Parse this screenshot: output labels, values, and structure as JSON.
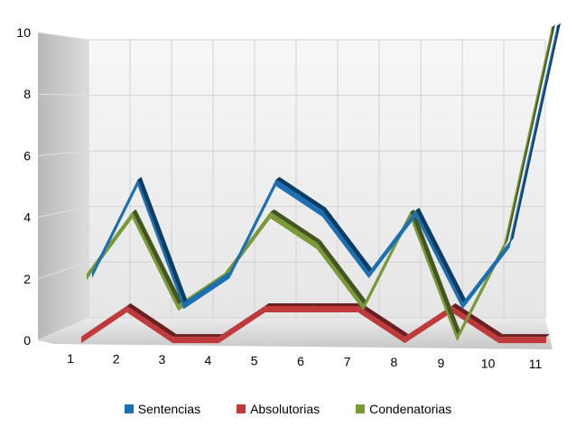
{
  "chart_data": {
    "type": "line",
    "style": "3d-ribbon",
    "x": [
      1,
      2,
      3,
      4,
      5,
      6,
      7,
      8,
      9,
      10,
      11
    ],
    "xticks": [
      "1",
      "2",
      "3",
      "4",
      "5",
      "6",
      "7",
      "8",
      "9",
      "10",
      "11"
    ],
    "yticks": [
      "0",
      "2",
      "4",
      "6",
      "8",
      "10"
    ],
    "ylim": [
      0,
      10
    ],
    "grid": true,
    "legend_position": "bottom",
    "series": [
      {
        "name": "Sentencias",
        "color": "#1a6fb5",
        "values": [
          2,
          5,
          1,
          2,
          5,
          4,
          2,
          4,
          1,
          3,
          10
        ]
      },
      {
        "name": "Absolutorias",
        "color": "#c0393b",
        "values": [
          0,
          1,
          0,
          0,
          1,
          1,
          1,
          0,
          1,
          0,
          0
        ]
      },
      {
        "name": "Condenatorias",
        "color": "#7a9a3a",
        "values": [
          2,
          4,
          1,
          2,
          4,
          3,
          1,
          4,
          0,
          3,
          10
        ]
      }
    ]
  }
}
